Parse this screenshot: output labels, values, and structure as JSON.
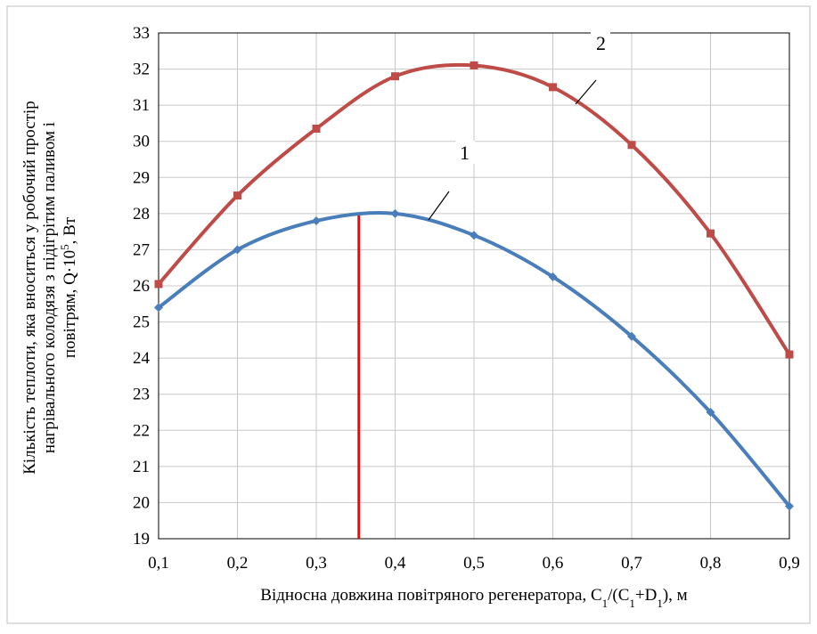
{
  "chart_data": {
    "type": "line",
    "x": [
      0.1,
      0.2,
      0.3,
      0.4,
      0.5,
      0.6,
      0.7,
      0.8,
      0.9
    ],
    "x_tick_labels": [
      "0,1",
      "0,2",
      "0,3",
      "0,4",
      "0,5",
      "0,6",
      "0,7",
      "0,8",
      "0,9"
    ],
    "y_tick_labels": [
      "19",
      "20",
      "21",
      "22",
      "23",
      "24",
      "25",
      "26",
      "27",
      "28",
      "29",
      "30",
      "31",
      "32",
      "33"
    ],
    "xlim": [
      0.1,
      0.9
    ],
    "ylim": [
      19,
      33
    ],
    "grid": true,
    "xlabel": {
      "main": "Відносна довжина повітряного регенератора, C",
      "sub1": "1",
      "mid": "/(C",
      "sub2": "1",
      "mid2": "+D",
      "sub3": "1",
      "end": "), м"
    },
    "ylabel": {
      "line1": "Кількість теплоти, яка вноситься у робочий простір",
      "line2": "нагрівального колодязя з підігрітим паливом і",
      "line3_main": "повітрям, Q·10",
      "line3_sup": "5",
      "line3_end": ", Вт"
    },
    "series": [
      {
        "label": "1",
        "color": "#4a7ebb",
        "marker": "diamond",
        "values": [
          25.4,
          27.0,
          27.8,
          28.0,
          27.4,
          26.25,
          24.6,
          22.5,
          19.9
        ]
      },
      {
        "label": "2",
        "color": "#be4b48",
        "marker": "square",
        "values": [
          26.05,
          28.5,
          30.35,
          31.8,
          32.1,
          31.5,
          29.9,
          27.45,
          24.1
        ]
      }
    ],
    "annotations": [
      {
        "type": "vertical-line",
        "x": 0.354,
        "y_from": 19,
        "y_to": 28.0,
        "color": "#ff0000"
      }
    ]
  }
}
